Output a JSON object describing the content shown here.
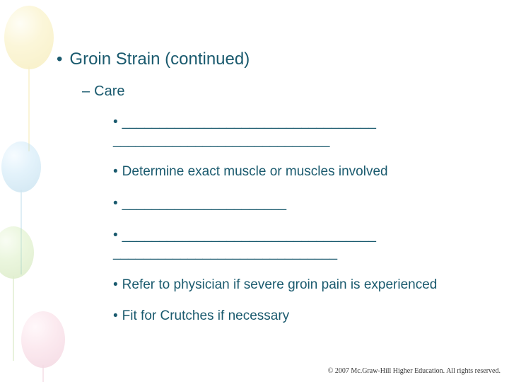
{
  "content": {
    "title": "Groin Strain (continued)",
    "subheading": "Care",
    "items": [
      "__________________________________ _____________________________",
      "Determine exact muscle or muscles involved",
      "______________________",
      "__________________________________ ______________________________",
      "Refer to physician if severe groin pain is experienced",
      "Fit for Crutches if necessary"
    ],
    "colors": {
      "text": "#1a5a6e",
      "background": "#ffffff"
    },
    "font": {
      "family": "Verdana",
      "title_size_pt": 24,
      "sub_size_pt": 20,
      "body_size_pt": 19
    }
  },
  "footer": {
    "copyright": "© 2007 Mc.Graw-Hill Higher Education.  All rights reserved."
  },
  "decorations": {
    "balloons": [
      {
        "color": "#e5c93a",
        "pos": "top-left"
      },
      {
        "color": "#5aa7cf",
        "pos": "mid-left"
      },
      {
        "color": "#8cbf4e",
        "pos": "lower-left"
      },
      {
        "color": "#d97fa0",
        "pos": "bottom-left"
      }
    ],
    "opacity": 0.28
  }
}
